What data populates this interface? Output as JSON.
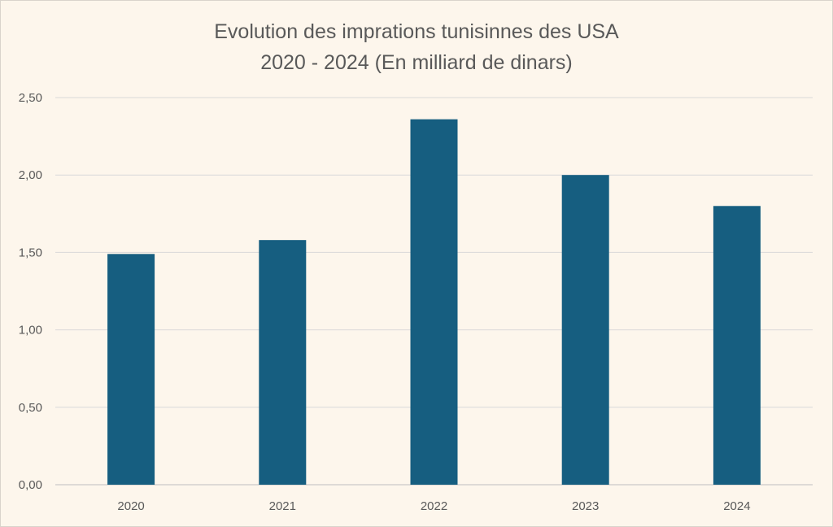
{
  "chart_data": {
    "type": "bar",
    "title": "Evolution des imprations tunisinnes des USA",
    "subtitle": "2020 - 2024 (En milliard de dinars)",
    "categories": [
      "2020",
      "2021",
      "2022",
      "2023",
      "2024"
    ],
    "values": [
      1.49,
      1.58,
      2.36,
      2.0,
      1.8
    ],
    "ylim": [
      0,
      2.5
    ],
    "yticks": [
      "0,00",
      "0,50",
      "1,00",
      "1,50",
      "2,00",
      "2,50"
    ],
    "xlabel": "",
    "ylabel": "",
    "grid": true,
    "legend": "none",
    "bar_color": "#165e80",
    "grid_color": "#d9d9d9",
    "text_color": "#595959"
  }
}
